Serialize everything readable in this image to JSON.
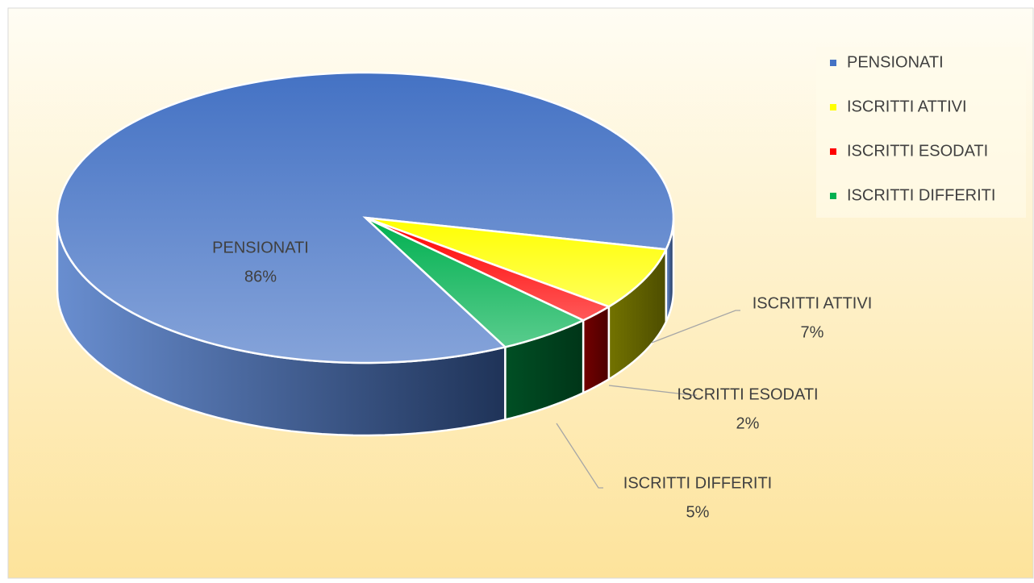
{
  "chart_data": {
    "type": "pie3d",
    "categories": [
      "PENSIONATI",
      "ISCRITTI ATTIVI",
      "ISCRITTI ESODATI",
      "ISCRITTI DIFFERITI"
    ],
    "values": [
      86,
      7,
      2,
      5
    ],
    "value_labels": [
      "86%",
      "7%",
      "2%",
      "5%"
    ],
    "colors": [
      "#4472c4",
      "#ffff00",
      "#ff0000",
      "#00b050"
    ],
    "legend": "top-right"
  }
}
